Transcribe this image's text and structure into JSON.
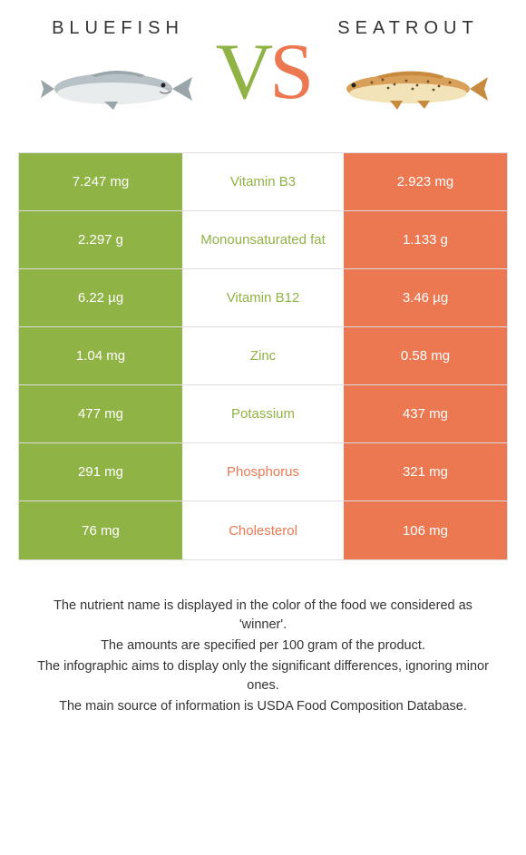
{
  "header": {
    "left_title": "Bluefish",
    "right_title": "Seatrout",
    "vs_v": "V",
    "vs_s": "S"
  },
  "colors": {
    "left": "#8fb344",
    "right": "#ec7852",
    "bg": "#ffffff",
    "border": "#dddddd",
    "text": "#333333"
  },
  "table": {
    "type": "table",
    "rows": [
      {
        "left": "7.247 mg",
        "label": "Vitamin B3",
        "right": "2.923 mg",
        "winner": "left"
      },
      {
        "left": "2.297 g",
        "label": "Monounsaturated fat",
        "right": "1.133 g",
        "winner": "left"
      },
      {
        "left": "6.22 µg",
        "label": "Vitamin B12",
        "right": "3.46 µg",
        "winner": "left"
      },
      {
        "left": "1.04 mg",
        "label": "Zinc",
        "right": "0.58 mg",
        "winner": "left"
      },
      {
        "left": "477 mg",
        "label": "Potassium",
        "right": "437 mg",
        "winner": "left"
      },
      {
        "left": "291 mg",
        "label": "Phosphorus",
        "right": "321 mg",
        "winner": "right"
      },
      {
        "left": "76 mg",
        "label": "Cholesterol",
        "right": "106 mg",
        "winner": "right"
      }
    ]
  },
  "footer": {
    "line1": "The nutrient name is displayed in the color of the food we considered as 'winner'.",
    "line2": "The amounts are specified per 100 gram of the product.",
    "line3": "The infographic aims to display only the significant differences, ignoring minor ones.",
    "line4": "The main source of information is USDA Food Composition Database."
  },
  "images": {
    "left_fish": {
      "body_color": "#b8c2c6",
      "belly_color": "#e8eced",
      "fin_color": "#9aa5aa"
    },
    "right_fish": {
      "body_color": "#d9a05a",
      "belly_color": "#f2e3b8",
      "spots_color": "#6b4a2a",
      "fin_color": "#c78a3f"
    }
  }
}
